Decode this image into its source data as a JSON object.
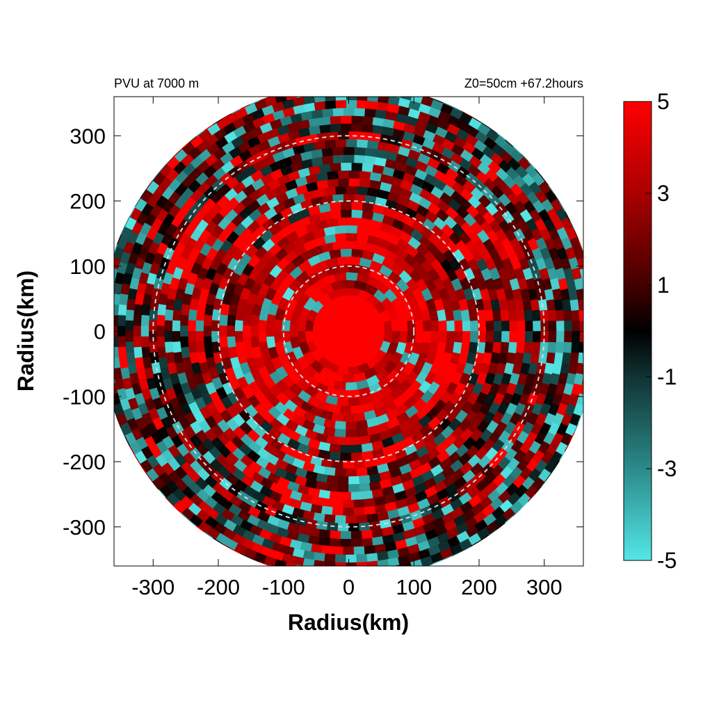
{
  "chart_data": {
    "type": "heatmap",
    "title_left": "PVU at  7000 m",
    "title_right": "Z0=50cm  +67.2hours",
    "xlabel": "Radius(km)",
    "ylabel": "Radius(km)",
    "xlim": [
      -360,
      360
    ],
    "ylim": [
      -360,
      360
    ],
    "x_ticks": [
      {
        "value": -300,
        "label": "-300"
      },
      {
        "value": -200,
        "label": "-200"
      },
      {
        "value": -100,
        "label": "-100"
      },
      {
        "value": 0,
        "label": "0"
      },
      {
        "value": 100,
        "label": "100"
      },
      {
        "value": 200,
        "label": "200"
      },
      {
        "value": 300,
        "label": "300"
      }
    ],
    "y_ticks": [
      {
        "value": 300,
        "label": "300"
      },
      {
        "value": 200,
        "label": "200"
      },
      {
        "value": 100,
        "label": "100"
      },
      {
        "value": 0,
        "label": "0"
      },
      {
        "value": -100,
        "label": "-100"
      },
      {
        "value": -200,
        "label": "-200"
      },
      {
        "value": -300,
        "label": "-300"
      }
    ],
    "domain_radius_km": 380,
    "core_radius_km": 55,
    "reference_circles_km": [
      100,
      200,
      300
    ],
    "colorbar": {
      "min": -5,
      "max": 5,
      "ticks": [
        {
          "value": 5,
          "label": "5"
        },
        {
          "value": 3,
          "label": "3"
        },
        {
          "value": 1,
          "label": "1"
        },
        {
          "value": -1,
          "label": "-1"
        },
        {
          "value": -3,
          "label": "-3"
        },
        {
          "value": -5,
          "label": "-5"
        }
      ],
      "stops": [
        {
          "value": 5,
          "color": "#ff0000"
        },
        {
          "value": 3,
          "color": "#aa0000"
        },
        {
          "value": 1,
          "color": "#440000"
        },
        {
          "value": 0,
          "color": "#000000"
        },
        {
          "value": -1,
          "color": "#113333"
        },
        {
          "value": -3,
          "color": "#2b8a8a"
        },
        {
          "value": -5,
          "color": "#55e6e6"
        }
      ]
    }
  }
}
